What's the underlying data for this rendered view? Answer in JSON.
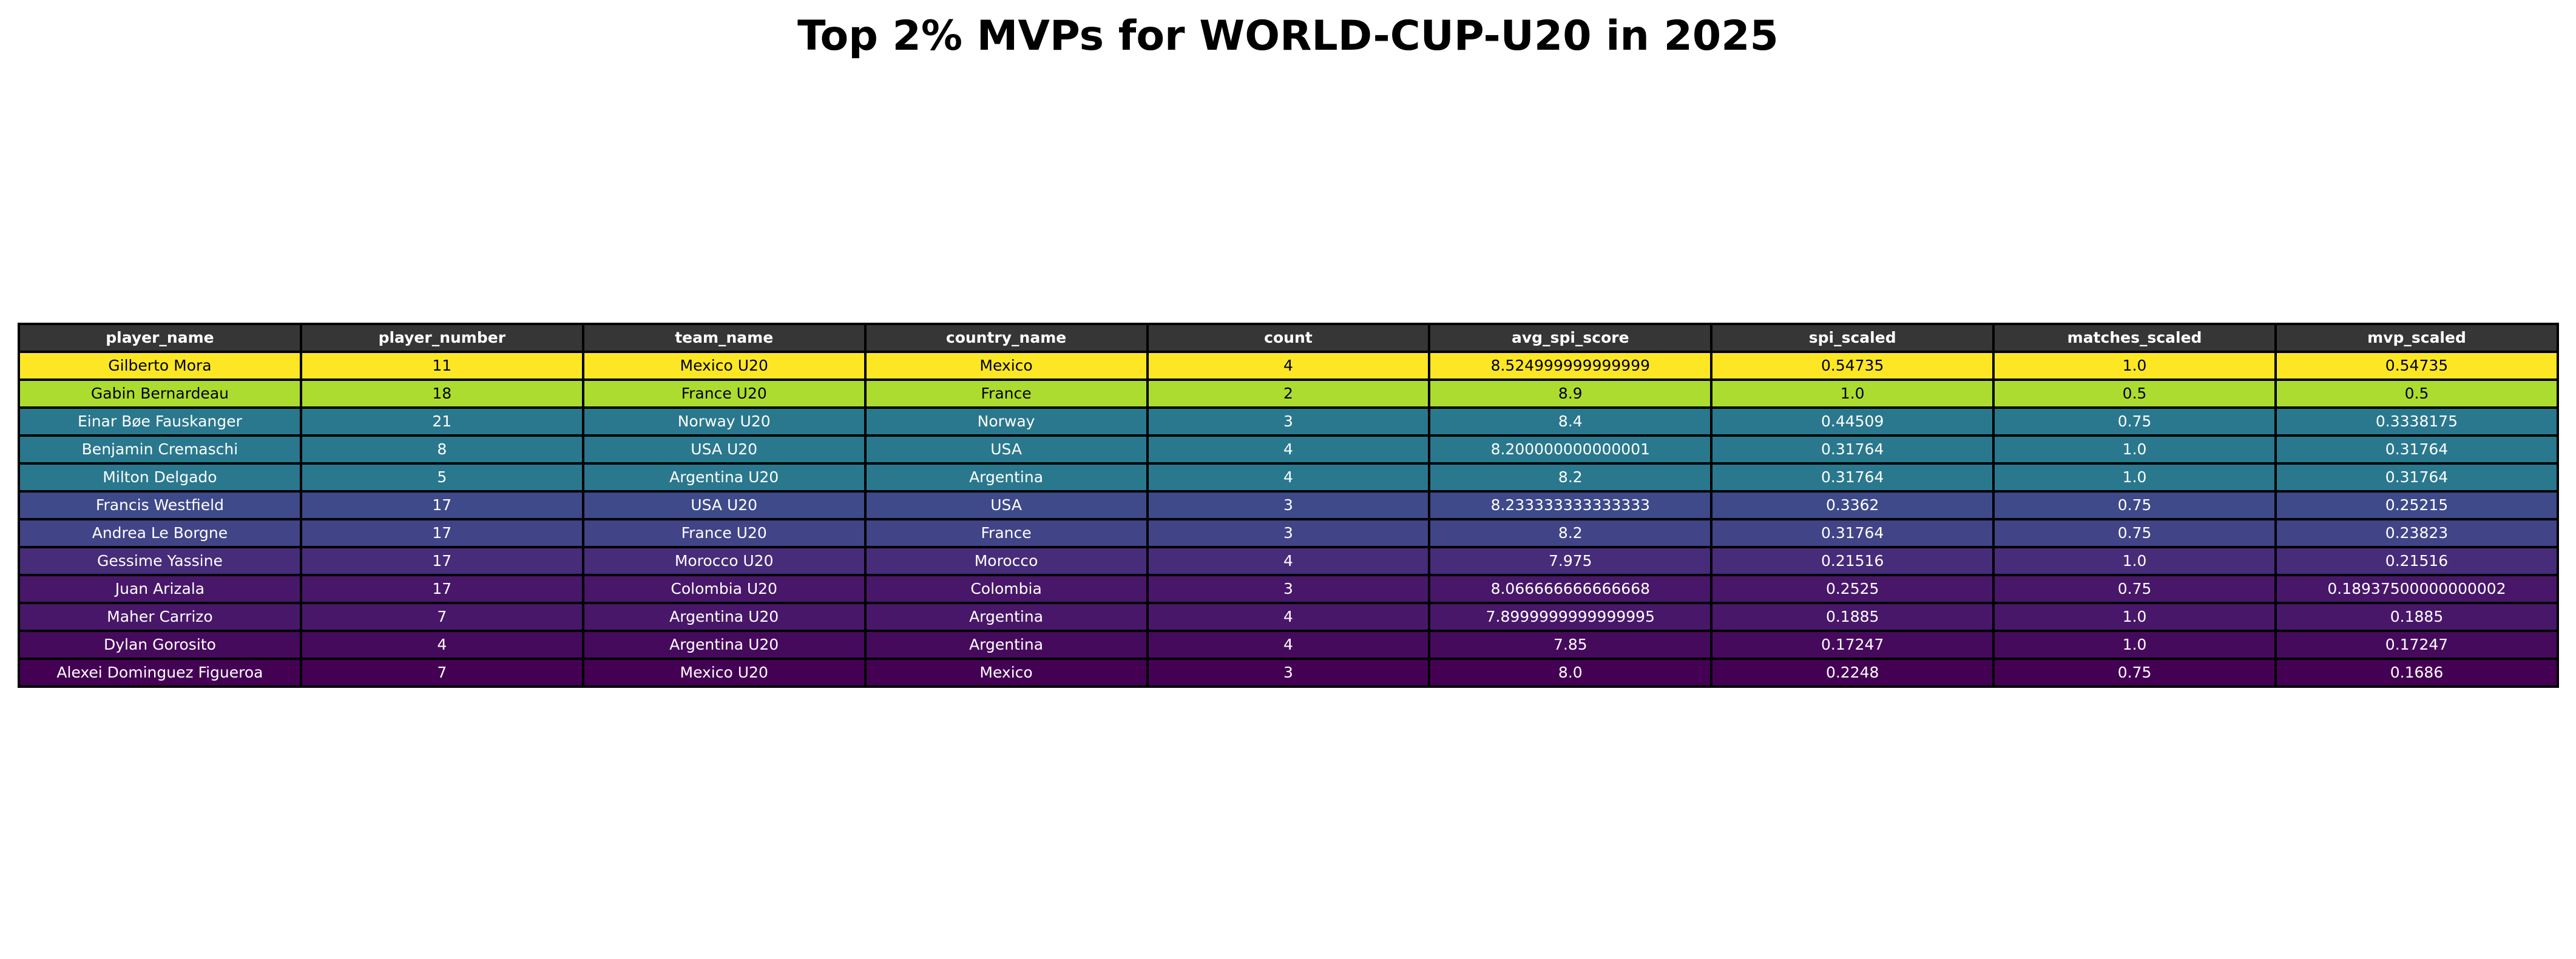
{
  "chart_data": {
    "type": "table",
    "title": "Top 2% MVPs for WORLD-CUP-U20 in 2025",
    "header_color": "#363636",
    "columns": [
      "player_name",
      "player_number",
      "team_name",
      "country_name",
      "count",
      "avg_spi_score",
      "spi_scaled",
      "matches_scaled",
      "mvp_scaled"
    ],
    "rows": [
      {
        "cells": [
          "Gilberto Mora",
          "11",
          "Mexico U20",
          "Mexico",
          "4",
          "8.524999999999999",
          "0.54735",
          "1.0",
          "0.54735"
        ],
        "color": "#fde725",
        "text_color": "#000000"
      },
      {
        "cells": [
          "Gabin Bernardeau",
          "18",
          "France U20",
          "France",
          "2",
          "8.9",
          "1.0",
          "0.5",
          "0.5"
        ],
        "color": "#addc30",
        "text_color": "#000000"
      },
      {
        "cells": [
          "Einar Bøe Fauskanger",
          "21",
          "Norway U20",
          "Norway",
          "3",
          "8.4",
          "0.44509",
          "0.75",
          "0.3338175"
        ],
        "color": "#2a788e",
        "text_color": "#ffffff"
      },
      {
        "cells": [
          "Benjamin Cremaschi",
          "8",
          "USA U20",
          "USA",
          "4",
          "8.200000000000001",
          "0.31764",
          "1.0",
          "0.31764"
        ],
        "color": "#2a788e",
        "text_color": "#ffffff"
      },
      {
        "cells": [
          "Milton Delgado",
          "5",
          "Argentina U20",
          "Argentina",
          "4",
          "8.2",
          "0.31764",
          "1.0",
          "0.31764"
        ],
        "color": "#2a788e",
        "text_color": "#ffffff"
      },
      {
        "cells": [
          "Francis Westfield",
          "17",
          "USA U20",
          "USA",
          "3",
          "8.233333333333333",
          "0.3362",
          "0.75",
          "0.25215"
        ],
        "color": "#3e4a89",
        "text_color": "#ffffff"
      },
      {
        "cells": [
          "Andrea Le Borgne",
          "17",
          "France U20",
          "France",
          "3",
          "8.2",
          "0.31764",
          "0.75",
          "0.23823"
        ],
        "color": "#414487",
        "text_color": "#ffffff"
      },
      {
        "cells": [
          "Gessime Yassine",
          "17",
          "Morocco U20",
          "Morocco",
          "4",
          "7.975",
          "0.21516",
          "1.0",
          "0.21516"
        ],
        "color": "#472c7a",
        "text_color": "#ffffff"
      },
      {
        "cells": [
          "Juan Arizala",
          "17",
          "Colombia U20",
          "Colombia",
          "3",
          "8.066666666666668",
          "0.2525",
          "0.75",
          "0.18937500000000002"
        ],
        "color": "#481769",
        "text_color": "#ffffff"
      },
      {
        "cells": [
          "Maher Carrizo",
          "7",
          "Argentina U20",
          "Argentina",
          "4",
          "7.8999999999999995",
          "0.1885",
          "1.0",
          "0.1885"
        ],
        "color": "#481769",
        "text_color": "#ffffff"
      },
      {
        "cells": [
          "Dylan Gorosito",
          "4",
          "Argentina U20",
          "Argentina",
          "4",
          "7.85",
          "0.17247",
          "1.0",
          "0.17247"
        ],
        "color": "#460a5d",
        "text_color": "#ffffff"
      },
      {
        "cells": [
          "Alexei Dominguez Figueroa",
          "7",
          "Mexico U20",
          "Mexico",
          "3",
          "8.0",
          "0.2248",
          "0.75",
          "0.1686"
        ],
        "color": "#440154",
        "text_color": "#ffffff"
      }
    ]
  }
}
